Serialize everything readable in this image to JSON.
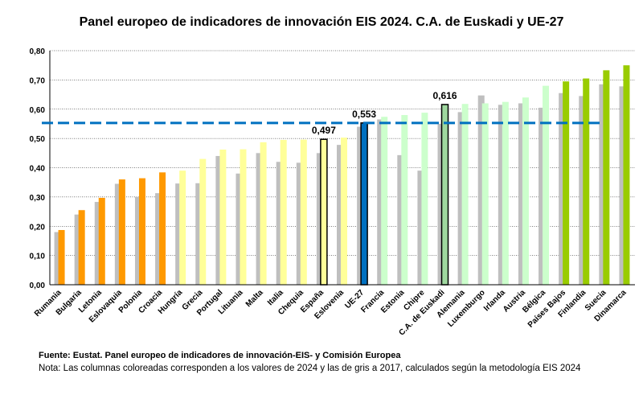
{
  "chart_data": {
    "type": "bar",
    "title": "Panel europeo de indicadores de innovación EIS 2024. C.A. de Euskadi y UE-27",
    "categories": [
      "Rumania",
      "Bulgaria",
      "Letonia",
      "Eslovaquia",
      "Polonia",
      "Croacia",
      "Hungría",
      "Grecia",
      "Portugal",
      "Lituania",
      "Malta",
      "Italia",
      "Chequia",
      "España",
      "Eslovenia",
      "UE-27",
      "Francia",
      "Estonia",
      "Chipre",
      "C.A. de Euskadi",
      "Alemania",
      "Luxemburgo",
      "Irlanda",
      "Austria",
      "Bélgica",
      "Países Bajos",
      "Finlandia",
      "Suecia",
      "Dinamarca"
    ],
    "series": [
      {
        "color": "#BFBFBF",
        "values": [
          0.18,
          0.24,
          0.283,
          0.345,
          0.3,
          0.313,
          0.346,
          0.347,
          0.44,
          0.38,
          0.45,
          0.42,
          0.417,
          0.45,
          0.478,
          0.54,
          0.565,
          0.443,
          0.39,
          0.55,
          0.59,
          0.647,
          0.615,
          0.62,
          0.605,
          0.655,
          0.645,
          0.685,
          0.678
        ]
      },
      {
        "colors": [
          "#FF9900",
          "#FF9900",
          "#FF9900",
          "#FF9900",
          "#FF9900",
          "#FF9900",
          "#FFFF99",
          "#FFFF99",
          "#FFFF99",
          "#FFFF99",
          "#FFFF99",
          "#FFFF99",
          "#FFFF99",
          "#FFFF99",
          "#FFFF99",
          "#0070C0",
          "#CCFFCC",
          "#CCFFCC",
          "#CCFFCC",
          "#9FD89F",
          "#CCFFCC",
          "#CCFFCC",
          "#CCFFCC",
          "#CCFFCC",
          "#CCFFCC",
          "#99CC00",
          "#99CC00",
          "#99CC00",
          "#99CC00"
        ],
        "values": [
          0.187,
          0.255,
          0.297,
          0.36,
          0.364,
          0.384,
          0.39,
          0.43,
          0.462,
          0.463,
          0.487,
          0.495,
          0.496,
          0.497,
          0.503,
          0.553,
          0.574,
          0.58,
          0.588,
          0.616,
          0.618,
          0.62,
          0.625,
          0.64,
          0.68,
          0.695,
          0.705,
          0.733,
          0.75
        ],
        "value_labels": [
          null,
          null,
          null,
          null,
          null,
          null,
          null,
          null,
          null,
          null,
          null,
          null,
          null,
          "0,497",
          null,
          "0,553",
          null,
          null,
          null,
          "0,616",
          null,
          null,
          null,
          null,
          null,
          null,
          null,
          null,
          null
        ]
      }
    ],
    "reference_line_color": "#0070C0",
    "ylim": [
      0,
      0.8
    ],
    "yticks": [
      {
        "value": 0,
        "label": "0,00"
      },
      {
        "value": 0.1,
        "label": "0,10"
      },
      {
        "value": 0.2,
        "label": "0,20"
      },
      {
        "value": 0.3,
        "label": "0,30"
      },
      {
        "value": 0.4,
        "label": "0,40"
      },
      {
        "value": 0.5,
        "label": "0,50"
      },
      {
        "value": 0.6,
        "label": "0,60"
      },
      {
        "value": 0.7,
        "label": "0,70"
      },
      {
        "value": 0.8,
        "label": "0,80"
      }
    ],
    "grid": true,
    "source": "Fuente: Eustat. Panel europeo de indicadores de innovación-EIS- y Comisión Europea",
    "note": "Nota: Las columnas coloreadas corresponden a los valores de 2024 y las de gris a 2017, calculados según la metodología EIS 2024"
  }
}
